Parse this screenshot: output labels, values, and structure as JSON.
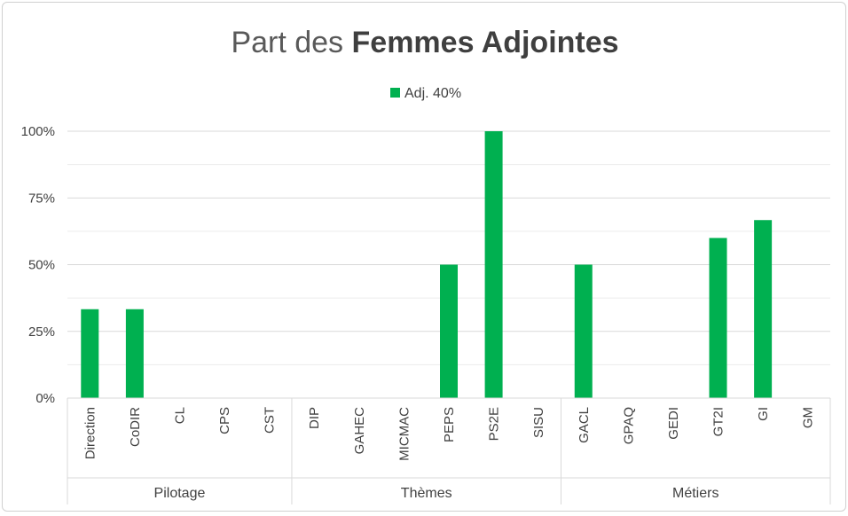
{
  "chart_data": {
    "type": "bar",
    "title_regular": "Part des ",
    "title_bold": "Femmes Adjointes",
    "series": [
      {
        "name": "Adj. 40%",
        "color": "#00b050",
        "values": [
          33.3,
          33.3,
          0,
          0,
          0,
          0,
          0,
          0,
          50,
          100,
          0,
          50,
          0,
          0,
          60,
          66.7,
          0
        ]
      }
    ],
    "categories": [
      "Direction",
      "CoDIR",
      "CL",
      "CPS",
      "CST",
      "DIP",
      "GAHEC",
      "MICMAC",
      "PEPS",
      "PS2E",
      "SISU",
      "GACL",
      "GPAQ",
      "GEDI",
      "GT2I",
      "GI",
      "GM"
    ],
    "groups": [
      {
        "name": "Pilotage",
        "count": 5
      },
      {
        "name": "Thèmes",
        "count": 6
      },
      {
        "name": "Métiers",
        "count": 6
      }
    ],
    "yticks": [
      "0%",
      "25%",
      "50%",
      "75%",
      "100%"
    ],
    "ylim": [
      0,
      100
    ],
    "grid": true,
    "legend_position": "top"
  }
}
